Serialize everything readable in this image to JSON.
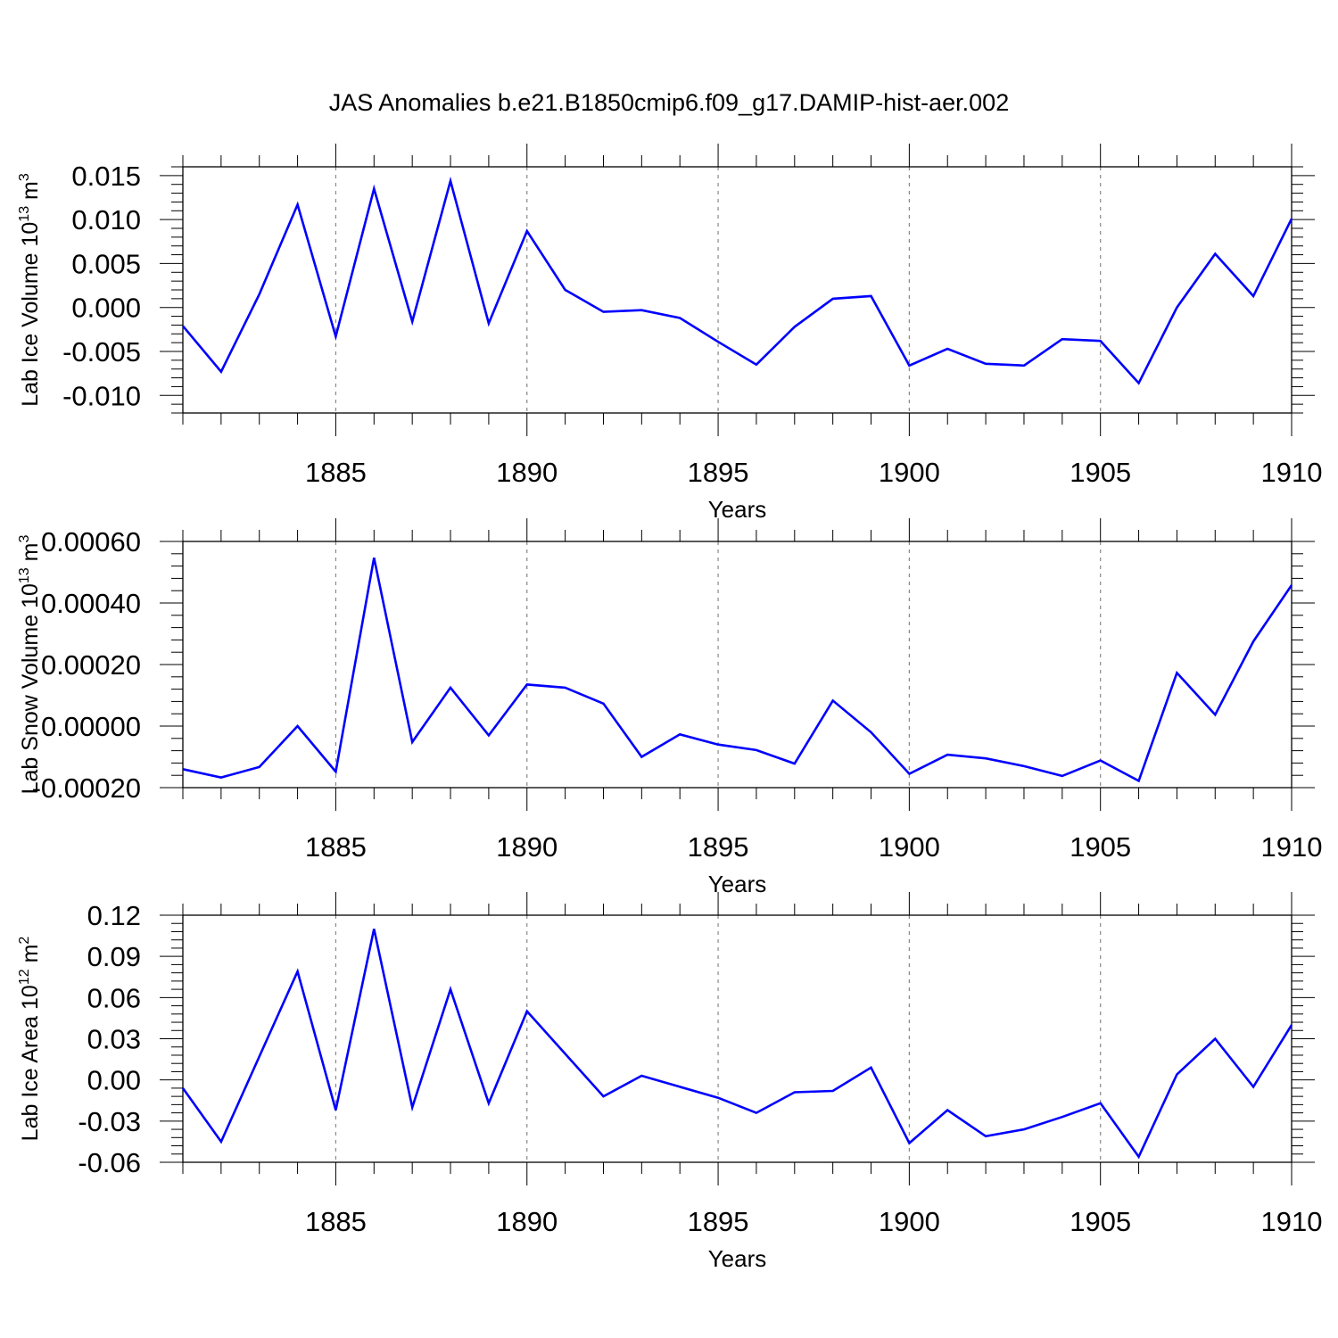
{
  "title": "JAS Anomalies b.e21.B1850cmip6.f09_g17.DAMIP-hist-aer.002",
  "colors": {
    "line": "#0000ff",
    "grid": "#888888",
    "axis": "#000000"
  },
  "chart_data": [
    {
      "type": "line",
      "ylabel": "Lab Ice Volume 10",
      "ylabel_exp": "13",
      "ylabel_unit": " m",
      "ylabel_unit_exp": "3",
      "xlabel": "Years",
      "xlim": [
        1881,
        1910
      ],
      "ylim": [
        -0.012,
        0.016
      ],
      "yticks": [
        0.015,
        0.01,
        0.005,
        0.0,
        -0.005,
        -0.01
      ],
      "ytick_labels": [
        "0.015",
        "0.010",
        "0.005",
        "0.000",
        "-0.005",
        "-0.010"
      ],
      "xticks": [
        1885,
        1890,
        1895,
        1900,
        1905,
        1910
      ],
      "xtick_labels": [
        "1885",
        "1890",
        "1895",
        "1900",
        "1905",
        "1910"
      ],
      "grid": "dashed vertical at major x ticks",
      "x": [
        1881,
        1882,
        1883,
        1884,
        1885,
        1886,
        1887,
        1888,
        1889,
        1890,
        1891,
        1892,
        1893,
        1894,
        1895,
        1896,
        1897,
        1898,
        1899,
        1900,
        1901,
        1902,
        1903,
        1904,
        1905,
        1906,
        1907,
        1908,
        1909,
        1910
      ],
      "values": [
        -0.0021,
        -0.0073,
        0.0015,
        0.0117,
        -0.0033,
        0.0135,
        -0.0016,
        0.0144,
        -0.0018,
        0.0087,
        0.002,
        -0.0005,
        -0.0003,
        -0.0012,
        -0.0039,
        -0.0065,
        -0.0022,
        0.001,
        0.0013,
        -0.0066,
        -0.0047,
        -0.0064,
        -0.0066,
        -0.0036,
        -0.0038,
        -0.0086,
        0.0,
        0.0061,
        0.0013,
        0.0101
      ]
    },
    {
      "type": "line",
      "ylabel": "Lab Snow Volume 10",
      "ylabel_exp": "13",
      "ylabel_unit": " m",
      "ylabel_unit_exp": "3",
      "xlabel": "Years",
      "xlim": [
        1881,
        1910
      ],
      "ylim": [
        -0.0002,
        0.0006
      ],
      "yticks": [
        0.0006,
        0.0004,
        0.0002,
        0.0,
        -0.0002
      ],
      "ytick_labels": [
        "0.00060",
        "0.00040",
        "0.00020",
        "0.00000",
        "-0.00020"
      ],
      "xticks": [
        1885,
        1890,
        1895,
        1900,
        1905,
        1910
      ],
      "xtick_labels": [
        "1885",
        "1890",
        "1895",
        "1900",
        "1905",
        "1910"
      ],
      "grid": "dashed vertical at major x ticks",
      "x": [
        1881,
        1882,
        1883,
        1884,
        1885,
        1886,
        1887,
        1888,
        1889,
        1890,
        1891,
        1892,
        1893,
        1894,
        1895,
        1896,
        1897,
        1898,
        1899,
        1900,
        1901,
        1902,
        1903,
        1904,
        1905,
        1906,
        1907,
        1908,
        1909,
        1910
      ],
      "values": [
        -0.00014,
        -0.000167,
        -0.000133,
        0.0,
        -0.000148,
        0.000547,
        -5.2e-05,
        0.000125,
        -3e-05,
        0.000135,
        0.000125,
        7.3e-05,
        -0.0001,
        -2.7e-05,
        -6e-05,
        -7.8e-05,
        -0.000122,
        8.3e-05,
        -2e-05,
        -0.000155,
        -9.3e-05,
        -0.000105,
        -0.00013,
        -0.000162,
        -0.000112,
        -0.000178,
        0.000173,
        3.7e-05,
        0.000275,
        0.000458
      ]
    },
    {
      "type": "line",
      "ylabel": "Lab Ice Area 10",
      "ylabel_exp": "12",
      "ylabel_unit": " m",
      "ylabel_unit_exp": "2",
      "xlabel": "Years",
      "xlim": [
        1881,
        1910
      ],
      "ylim": [
        -0.06,
        0.12
      ],
      "yticks": [
        0.12,
        0.09,
        0.06,
        0.03,
        0.0,
        -0.03,
        -0.06
      ],
      "ytick_labels": [
        "0.12",
        "0.09",
        "0.06",
        "0.03",
        "0.00",
        "-0.03",
        "-0.06"
      ],
      "xticks": [
        1885,
        1890,
        1895,
        1900,
        1905,
        1910
      ],
      "xtick_labels": [
        "1885",
        "1890",
        "1895",
        "1900",
        "1905",
        "1910"
      ],
      "grid": "dashed vertical at major x ticks",
      "x": [
        1881,
        1882,
        1883,
        1884,
        1885,
        1886,
        1887,
        1888,
        1889,
        1890,
        1891,
        1892,
        1893,
        1894,
        1895,
        1896,
        1897,
        1898,
        1899,
        1900,
        1901,
        1902,
        1903,
        1904,
        1905,
        1906,
        1907,
        1908,
        1909,
        1910
      ],
      "values": [
        -0.006,
        -0.045,
        0.017,
        0.079,
        -0.022,
        0.11,
        -0.02,
        0.066,
        -0.017,
        0.05,
        0.019,
        -0.012,
        0.003,
        -0.005,
        -0.013,
        -0.024,
        -0.009,
        -0.008,
        0.009,
        -0.046,
        -0.022,
        -0.041,
        -0.036,
        -0.027,
        -0.017,
        -0.056,
        0.004,
        0.03,
        -0.005,
        0.04
      ]
    }
  ]
}
